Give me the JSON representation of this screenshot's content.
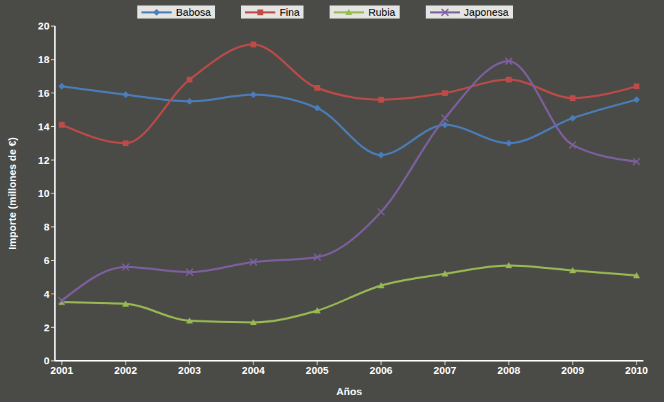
{
  "chart_data": {
    "type": "line",
    "x_label": "Años",
    "y_label": "Importe (millones de €)",
    "categories": [
      "2001",
      "2002",
      "2003",
      "2004",
      "2005",
      "2006",
      "2007",
      "2008",
      "2009",
      "2010"
    ],
    "series": [
      {
        "name": "Babosa",
        "color": "#4a7ebb",
        "marker": "diamond",
        "values": [
          16.4,
          15.9,
          15.5,
          15.9,
          15.1,
          12.3,
          14.1,
          13.0,
          14.5,
          15.6
        ]
      },
      {
        "name": "Fina",
        "color": "#be4b48",
        "marker": "square",
        "values": [
          14.1,
          13.0,
          16.8,
          18.9,
          16.3,
          15.6,
          16.0,
          16.8,
          15.7,
          16.4
        ]
      },
      {
        "name": "Rubia",
        "color": "#98b954",
        "marker": "triangle",
        "values": [
          3.5,
          3.4,
          2.4,
          2.3,
          3.0,
          4.5,
          5.2,
          5.7,
          5.4,
          5.1
        ]
      },
      {
        "name": "Japonesa",
        "color": "#7d60a0",
        "marker": "x",
        "values": [
          3.6,
          5.6,
          5.3,
          5.9,
          6.2,
          8.9,
          14.5,
          17.9,
          12.9,
          11.9
        ]
      }
    ],
    "ylim": [
      0,
      20
    ],
    "yticks": [
      0,
      2,
      4,
      6,
      8,
      10,
      12,
      14,
      16,
      18,
      20
    ],
    "grid": false,
    "legend": "top"
  }
}
